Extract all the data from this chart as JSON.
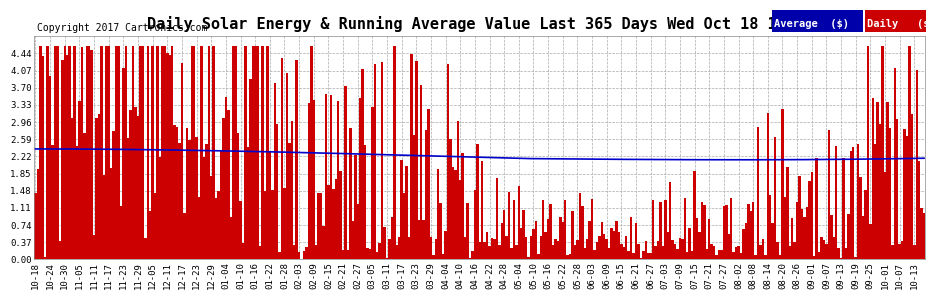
{
  "title": "Daily Solar Energy & Running Average Value Last 365 Days Wed Oct 18 18:05",
  "copyright": "Copyright 2017 Cartronics.com",
  "legend_labels": [
    "Average  ($)",
    "Daily   ($)"
  ],
  "legend_colors": [
    "#0000aa",
    "#cc0000"
  ],
  "bar_color": "#cc0000",
  "avg_line_color": "#0000cc",
  "background_color": "#ffffff",
  "plot_bg_color": "#ffffff",
  "ylim": [
    0.0,
    4.81
  ],
  "yticks": [
    0.0,
    0.37,
    0.74,
    1.11,
    1.48,
    1.85,
    2.22,
    2.59,
    2.96,
    3.33,
    3.7,
    4.07,
    4.44
  ],
  "grid_color": "#aaaaaa",
  "grid_style": "--",
  "n_days": 365,
  "title_fontsize": 11,
  "tick_fontsize": 6.5,
  "copyright_fontsize": 7,
  "legend_fontsize": 7.5
}
